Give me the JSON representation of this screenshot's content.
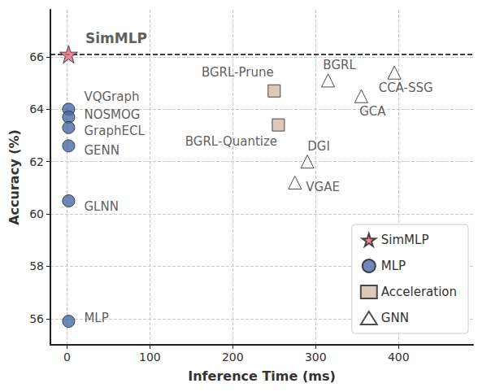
{
  "chart_data": {
    "type": "scatter",
    "x_label": "Inference Time (ms)",
    "y_label": "Accuracy (%)",
    "xlim": [
      -20,
      490
    ],
    "xticks": [
      0,
      100,
      200,
      300,
      400
    ],
    "ylim": [
      55,
      67.8
    ],
    "yticks": [
      56,
      58,
      60,
      62,
      64,
      66
    ],
    "grid": true,
    "legend": "lower right",
    "reference_line": {
      "y": 66.1,
      "line_style": "dashed"
    },
    "series": [
      {
        "name": "SimMLP",
        "color": "#e36b7e",
        "marker": "star",
        "x": [
          2
        ],
        "y": [
          66.1
        ],
        "labels": [
          "SimMLP"
        ]
      },
      {
        "name": "MLP",
        "color": "#4a6aa8",
        "marker": "circle",
        "x": [
          2,
          2,
          2,
          2,
          2,
          2
        ],
        "y": [
          64.0,
          63.7,
          63.3,
          62.6,
          60.5,
          55.9
        ],
        "labels": [
          "VQGraph",
          "NOSMOG",
          "GraphECL",
          "GENN",
          "GLNN",
          "MLP"
        ]
      },
      {
        "name": "Acceleration",
        "color": "#d4bba5",
        "marker": "square",
        "x": [
          250,
          255
        ],
        "y": [
          64.7,
          63.4
        ],
        "labels": [
          "BGRL-Prune",
          "BGRL-Quantize"
        ]
      },
      {
        "name": "GNN",
        "color": "#ffffff",
        "marker": "triangle",
        "x": [
          315,
          395,
          355,
          290,
          275
        ],
        "y": [
          65.1,
          65.4,
          64.5,
          62.0,
          61.2
        ],
        "labels": [
          "BGRL",
          "CCA-SSG",
          "GCA",
          "DGI",
          "VGAE"
        ]
      }
    ]
  }
}
